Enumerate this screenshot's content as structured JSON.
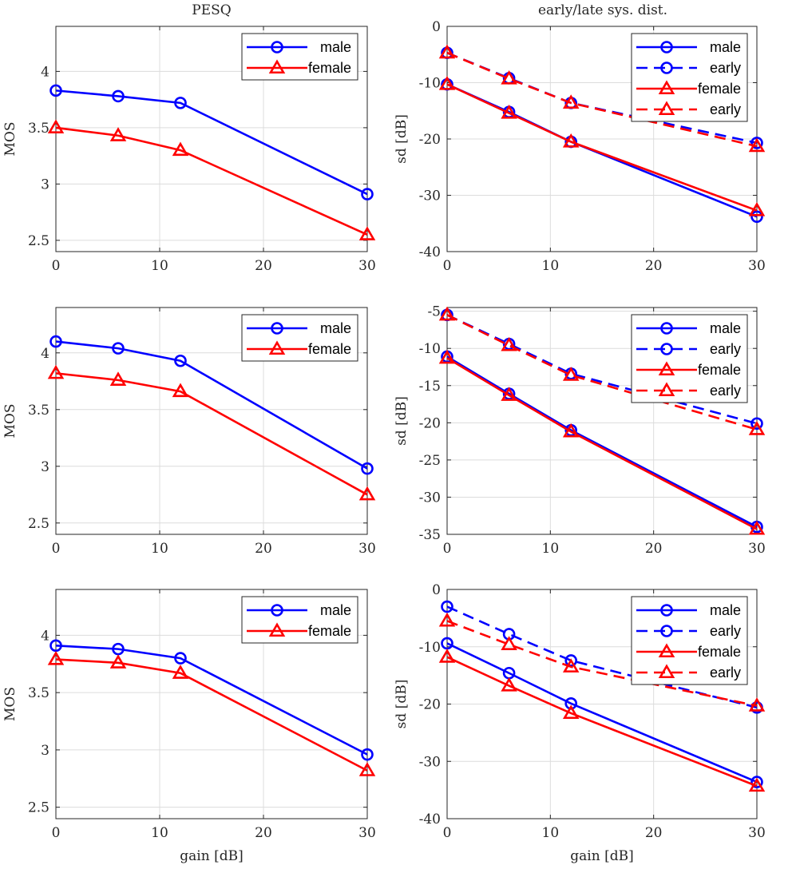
{
  "figure": {
    "col_titles": [
      "PESQ",
      "early/late sys. dist."
    ],
    "xlabel_bottom": "gain [dB]"
  },
  "colors": {
    "male": "#0000ff",
    "female": "#ff0000",
    "grid": "#dcdcdc",
    "axis": "#262626"
  },
  "chart_data": [
    {
      "type": "line",
      "title": "PESQ",
      "xlabel": "",
      "ylabel": "MOS",
      "xlim": [
        0,
        30
      ],
      "ylim": [
        2.4,
        4.4
      ],
      "xticks": [
        0,
        10,
        20,
        30
      ],
      "yticks": [
        2.5,
        3,
        3.5,
        4
      ],
      "xtick_labels": [
        "0",
        "10",
        "20",
        "30"
      ],
      "ytick_labels": [
        "2.5",
        "3",
        "3.5",
        "4"
      ],
      "x": [
        0,
        6,
        12,
        30
      ],
      "series": [
        {
          "name": "male",
          "color": "#0000ff",
          "marker": "circle",
          "dash": "solid",
          "values": [
            3.83,
            3.78,
            3.72,
            2.91
          ]
        },
        {
          "name": "female",
          "color": "#ff0000",
          "marker": "triangle",
          "dash": "solid",
          "values": [
            3.5,
            3.43,
            3.3,
            2.55
          ]
        }
      ],
      "legend": [
        "male",
        "female"
      ],
      "legend_location": "top-right",
      "grid": true
    },
    {
      "type": "line",
      "title": "early/late sys. dist.",
      "xlabel": "",
      "ylabel": "sd [dB]",
      "xlim": [
        0,
        30
      ],
      "ylim": [
        -40,
        0
      ],
      "xticks": [
        0,
        10,
        20,
        30
      ],
      "yticks": [
        -40,
        -30,
        -20,
        -10,
        0
      ],
      "xtick_labels": [
        "0",
        "10",
        "20",
        "30"
      ],
      "ytick_labels": [
        "-40",
        "-30",
        "-20",
        "-10",
        "0"
      ],
      "x": [
        0,
        6,
        12,
        30
      ],
      "series": [
        {
          "name": "male",
          "color": "#0000ff",
          "marker": "circle",
          "dash": "solid",
          "values": [
            -10.3,
            -15.2,
            -20.5,
            -33.8
          ]
        },
        {
          "name": "early",
          "color": "#0000ff",
          "marker": "circle",
          "dash": "dashed",
          "values": [
            -4.7,
            -9.2,
            -13.6,
            -20.7
          ]
        },
        {
          "name": "female",
          "color": "#ff0000",
          "marker": "triangle",
          "dash": "solid",
          "values": [
            -10.3,
            -15.4,
            -20.5,
            -32.7
          ]
        },
        {
          "name": "early",
          "color": "#ff0000",
          "marker": "triangle",
          "dash": "dashed",
          "values": [
            -4.7,
            -9.3,
            -13.6,
            -21.3
          ]
        }
      ],
      "legend": [
        "male",
        "early",
        "female",
        "early"
      ],
      "legend_location": "top-right",
      "grid": true
    },
    {
      "type": "line",
      "title": "",
      "xlabel": "",
      "ylabel": "MOS",
      "xlim": [
        0,
        30
      ],
      "ylim": [
        2.4,
        4.4
      ],
      "xticks": [
        0,
        10,
        20,
        30
      ],
      "yticks": [
        2.5,
        3,
        3.5,
        4
      ],
      "xtick_labels": [
        "0",
        "10",
        "20",
        "30"
      ],
      "ytick_labels": [
        "2.5",
        "3",
        "3.5",
        "4"
      ],
      "x": [
        0,
        6,
        12,
        30
      ],
      "series": [
        {
          "name": "male",
          "color": "#0000ff",
          "marker": "circle",
          "dash": "solid",
          "values": [
            4.1,
            4.04,
            3.93,
            2.98
          ]
        },
        {
          "name": "female",
          "color": "#ff0000",
          "marker": "triangle",
          "dash": "solid",
          "values": [
            3.82,
            3.76,
            3.66,
            2.75
          ]
        }
      ],
      "legend": [
        "male",
        "female"
      ],
      "legend_location": "top-right",
      "grid": true
    },
    {
      "type": "line",
      "title": "",
      "xlabel": "",
      "ylabel": "sd [dB]",
      "xlim": [
        0,
        30
      ],
      "ylim": [
        -35,
        -4.5
      ],
      "xticks": [
        0,
        10,
        20,
        30
      ],
      "yticks": [
        -35,
        -30,
        -25,
        -20,
        -15,
        -10,
        -5
      ],
      "xtick_labels": [
        "0",
        "10",
        "20",
        "30"
      ],
      "ytick_labels": [
        "-35",
        "-30",
        "-25",
        "-20",
        "-15",
        "-10",
        "-5"
      ],
      "x": [
        0,
        6,
        12,
        30
      ],
      "series": [
        {
          "name": "male",
          "color": "#0000ff",
          "marker": "circle",
          "dash": "solid",
          "values": [
            -11.1,
            -16.1,
            -21.0,
            -34.0
          ]
        },
        {
          "name": "early",
          "color": "#0000ff",
          "marker": "circle",
          "dash": "dashed",
          "values": [
            -5.5,
            -9.4,
            -13.4,
            -20.1
          ]
        },
        {
          "name": "female",
          "color": "#ff0000",
          "marker": "triangle",
          "dash": "solid",
          "values": [
            -11.3,
            -16.3,
            -21.2,
            -34.3
          ]
        },
        {
          "name": "early",
          "color": "#ff0000",
          "marker": "triangle",
          "dash": "dashed",
          "values": [
            -5.5,
            -9.6,
            -13.6,
            -20.9
          ]
        }
      ],
      "legend": [
        "male",
        "early",
        "female",
        "early"
      ],
      "legend_location": "top-right",
      "grid": true
    },
    {
      "type": "line",
      "title": "",
      "xlabel": "gain [dB]",
      "ylabel": "MOS",
      "xlim": [
        0,
        30
      ],
      "ylim": [
        2.4,
        4.4
      ],
      "xticks": [
        0,
        10,
        20,
        30
      ],
      "yticks": [
        2.5,
        3,
        3.5,
        4
      ],
      "xtick_labels": [
        "0",
        "10",
        "20",
        "30"
      ],
      "ytick_labels": [
        "2.5",
        "3",
        "3.5",
        "4"
      ],
      "x": [
        0,
        6,
        12,
        30
      ],
      "series": [
        {
          "name": "male",
          "color": "#0000ff",
          "marker": "circle",
          "dash": "solid",
          "values": [
            3.91,
            3.88,
            3.8,
            2.96
          ]
        },
        {
          "name": "female",
          "color": "#ff0000",
          "marker": "triangle",
          "dash": "solid",
          "values": [
            3.79,
            3.76,
            3.67,
            2.82
          ]
        }
      ],
      "legend": [
        "male",
        "female"
      ],
      "legend_location": "top-right",
      "grid": true
    },
    {
      "type": "line",
      "title": "",
      "xlabel": "gain [dB]",
      "ylabel": "sd [dB]",
      "xlim": [
        0,
        30
      ],
      "ylim": [
        -40,
        0
      ],
      "xticks": [
        0,
        10,
        20,
        30
      ],
      "yticks": [
        -40,
        -30,
        -20,
        -10,
        0
      ],
      "xtick_labels": [
        "0",
        "10",
        "20",
        "30"
      ],
      "ytick_labels": [
        "-40",
        "-30",
        "-20",
        "-10",
        "0"
      ],
      "x": [
        0,
        6,
        12,
        30
      ],
      "series": [
        {
          "name": "male",
          "color": "#0000ff",
          "marker": "circle",
          "dash": "solid",
          "values": [
            -9.4,
            -14.6,
            -19.9,
            -33.6
          ]
        },
        {
          "name": "early",
          "color": "#0000ff",
          "marker": "circle",
          "dash": "dashed",
          "values": [
            -3.0,
            -7.8,
            -12.4,
            -20.6
          ]
        },
        {
          "name": "female",
          "color": "#ff0000",
          "marker": "triangle",
          "dash": "solid",
          "values": [
            -11.8,
            -16.8,
            -21.6,
            -34.3
          ]
        },
        {
          "name": "early",
          "color": "#ff0000",
          "marker": "triangle",
          "dash": "dashed",
          "values": [
            -5.5,
            -9.6,
            -13.5,
            -20.3
          ]
        }
      ],
      "legend": [
        "male",
        "early",
        "female",
        "early"
      ],
      "legend_location": "top-right",
      "grid": true
    }
  ]
}
